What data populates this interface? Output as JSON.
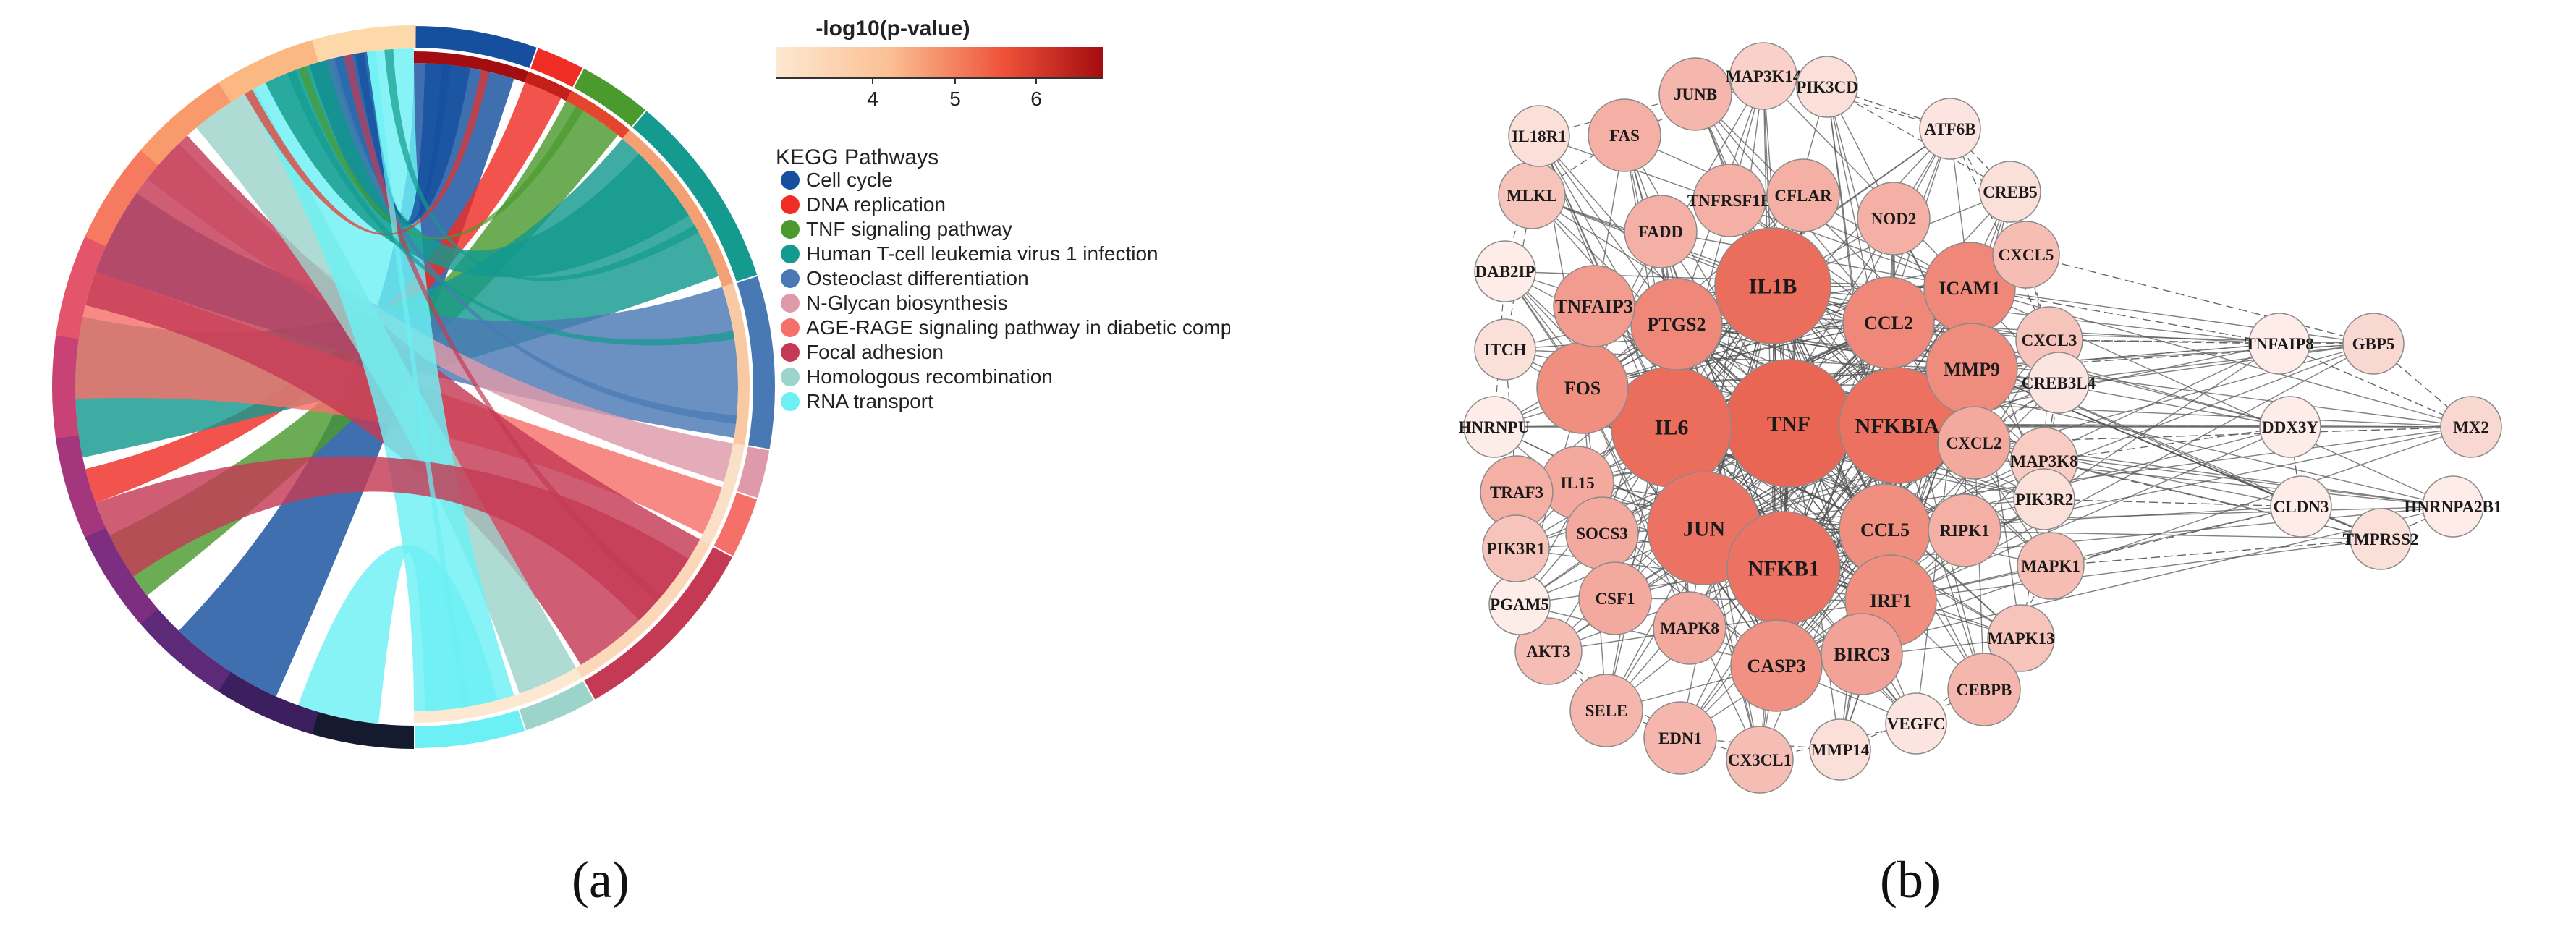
{
  "panel_a": {
    "label": "(a)",
    "colorbar": {
      "title": "-log10(p-value)",
      "ticks": [
        "4",
        "5",
        "6"
      ],
      "colors": [
        "#fde9d2",
        "#b30f12"
      ]
    },
    "legend": {
      "title": "KEGG Pathways",
      "items": [
        {
          "label": "Cell cycle",
          "color": "#154f9e"
        },
        {
          "label": "DNA replication",
          "color": "#ef2d25"
        },
        {
          "label": "TNF signaling pathway",
          "color": "#4b9a2e"
        },
        {
          "label": "Human T-cell leukemia virus 1 infection",
          "color": "#149a8e"
        },
        {
          "label": "Osteoclast differentiation",
          "color": "#4979b5"
        },
        {
          "label": "N-Glycan biosynthesis",
          "color": "#de9aaa"
        },
        {
          "label": "AGE-RAGE signaling pathway in diabetic complic",
          "color": "#f6706a"
        },
        {
          "label": "Focal adhesion",
          "color": "#c43a55"
        },
        {
          "label": "Homologous recombination",
          "color": "#9cd3cb"
        },
        {
          "label": "RNA transport",
          "color": "#6cf0f4"
        }
      ]
    }
  },
  "panel_b": {
    "label": "(b)",
    "nodes": [
      {
        "id": "TNF",
        "level": 1.0
      },
      {
        "id": "IL6",
        "level": 0.95
      },
      {
        "id": "IL1B",
        "level": 0.95
      },
      {
        "id": "NFKBIA",
        "level": 0.92
      },
      {
        "id": "JUN",
        "level": 0.9
      },
      {
        "id": "NFKB1",
        "level": 0.9
      },
      {
        "id": "PTGS2",
        "level": 0.75
      },
      {
        "id": "CCL2",
        "level": 0.75
      },
      {
        "id": "ICAM1",
        "level": 0.75
      },
      {
        "id": "MMP9",
        "level": 0.72
      },
      {
        "id": "CCL5",
        "level": 0.7
      },
      {
        "id": "FOS",
        "level": 0.7
      },
      {
        "id": "IRF1",
        "level": 0.7
      },
      {
        "id": "CASP3",
        "level": 0.68
      },
      {
        "id": "TNFAIP3",
        "level": 0.6
      },
      {
        "id": "CXCL2",
        "level": 0.5
      },
      {
        "id": "IL15",
        "level": 0.5
      },
      {
        "id": "SOCS3",
        "level": 0.5
      },
      {
        "id": "CSF1",
        "level": 0.5
      },
      {
        "id": "MAPK8",
        "level": 0.5
      },
      {
        "id": "BIRC3",
        "level": 0.55
      },
      {
        "id": "RIPK1",
        "level": 0.45
      },
      {
        "id": "TRAF3",
        "level": 0.45
      },
      {
        "id": "FADD",
        "level": 0.45
      },
      {
        "id": "TNFRSF1B",
        "level": 0.45
      },
      {
        "id": "CFLAR",
        "level": 0.45
      },
      {
        "id": "NOD2",
        "level": 0.45
      },
      {
        "id": "FAS",
        "level": 0.45
      },
      {
        "id": "JUNB",
        "level": 0.4
      },
      {
        "id": "MAP3K14",
        "level": 0.2
      },
      {
        "id": "PIK3CD",
        "level": 0.1
      },
      {
        "id": "ATF6B",
        "level": 0.05
      },
      {
        "id": "CREB5",
        "level": 0.1
      },
      {
        "id": "CXCL5",
        "level": 0.35
      },
      {
        "id": "CXCL3",
        "level": 0.3
      },
      {
        "id": "CREB3L4",
        "level": 0.05
      },
      {
        "id": "MAP3K8",
        "level": 0.25
      },
      {
        "id": "PIK3R2",
        "level": 0.1
      },
      {
        "id": "MAPK1",
        "level": 0.35
      },
      {
        "id": "MAPK13",
        "level": 0.3
      },
      {
        "id": "CEBPB",
        "level": 0.4
      },
      {
        "id": "VEGFC",
        "level": 0.05
      },
      {
        "id": "MMP14",
        "level": 0.1
      },
      {
        "id": "CX3CL1",
        "level": 0.35
      },
      {
        "id": "EDN1",
        "level": 0.4
      },
      {
        "id": "SELE",
        "level": 0.4
      },
      {
        "id": "AKT3",
        "level": 0.35
      },
      {
        "id": "PGAM5",
        "level": 0.0
      },
      {
        "id": "PIK3R1",
        "level": 0.3
      },
      {
        "id": "HNRNPU",
        "level": 0.0
      },
      {
        "id": "ITCH",
        "level": 0.1
      },
      {
        "id": "DAB2IP",
        "level": 0.0
      },
      {
        "id": "MLKL",
        "level": 0.3
      },
      {
        "id": "IL18R1",
        "level": 0.1
      },
      {
        "id": "TNFAIP8",
        "level": 0.0
      },
      {
        "id": "GBP5",
        "level": 0.15
      },
      {
        "id": "DDX3Y",
        "level": 0.0
      },
      {
        "id": "MX2",
        "level": 0.15
      },
      {
        "id": "CLDN3",
        "level": 0.0
      },
      {
        "id": "HNRNPA2B1",
        "level": 0.0
      },
      {
        "id": "TMPRSS2",
        "level": 0.1
      }
    ]
  }
}
